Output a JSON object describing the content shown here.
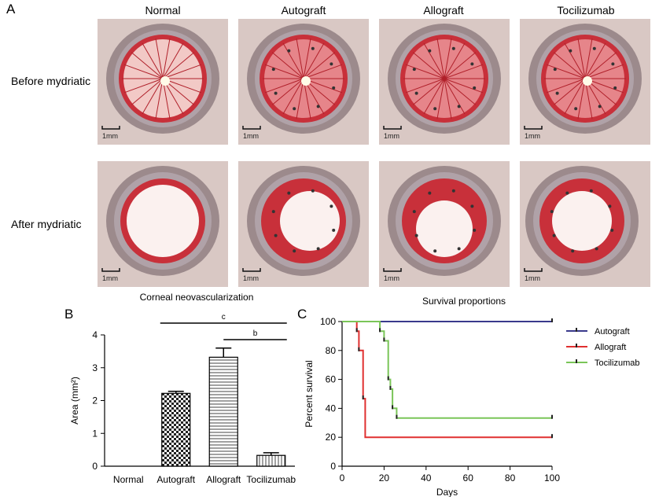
{
  "panel_a": {
    "letter": "A",
    "columns": [
      "Normal",
      "Autograft",
      "Allograft",
      "Tocilizumab"
    ],
    "rows": [
      "Before mydriatic",
      "After mydriatic"
    ],
    "scale_label": "1mm"
  },
  "chart_data": [
    {
      "letter": "B",
      "type": "bar",
      "title": "Corneal neovascularization",
      "ylabel": "Area (mm²)",
      "xlabel": "",
      "categories": [
        "Normal",
        "Autograft",
        "Allograft",
        "Tocilizumab"
      ],
      "values": [
        0,
        2.22,
        3.32,
        0.33
      ],
      "errors": [
        0,
        0.06,
        0.28,
        0.08
      ],
      "patterns": [
        "none",
        "checker",
        "horizontal-lines",
        "vertical-lines"
      ],
      "ylim": [
        0,
        4
      ],
      "yticks": [
        0,
        1,
        2,
        3,
        4
      ],
      "significance": [
        {
          "label": "c",
          "from": "Autograft",
          "to": "Tocilizumab"
        },
        {
          "label": "b",
          "from": "Allograft",
          "to": "Tocilizumab"
        }
      ],
      "grid": false
    },
    {
      "letter": "C",
      "type": "line",
      "subtype": "step",
      "title": "Survival proportions",
      "xlabel": "Days",
      "ylabel": "Percent survival",
      "xlim": [
        0,
        100
      ],
      "ylim": [
        0,
        100
      ],
      "xticks": [
        0,
        20,
        40,
        60,
        80,
        100
      ],
      "yticks": [
        0,
        20,
        40,
        60,
        80,
        100
      ],
      "legend_position": "right",
      "grid": false,
      "series": [
        {
          "name": "Autograft",
          "color": "#3a3a8c",
          "points": [
            [
              0,
              100
            ],
            [
              100,
              100
            ]
          ],
          "censored": [
            [
              100,
              100
            ]
          ]
        },
        {
          "name": "Allograft",
          "color": "#e03030",
          "points": [
            [
              0,
              100
            ],
            [
              7,
              100
            ],
            [
              7,
              93.3
            ],
            [
              8,
              93.3
            ],
            [
              8,
              80
            ],
            [
              10,
              80
            ],
            [
              10,
              46.7
            ],
            [
              11,
              46.7
            ],
            [
              11,
              20
            ],
            [
              100,
              20
            ]
          ],
          "censored": [
            [
              7,
              93.3
            ],
            [
              8,
              80
            ],
            [
              10,
              46.7
            ],
            [
              100,
              20
            ]
          ]
        },
        {
          "name": "Tocilizumab",
          "color": "#7ac558",
          "points": [
            [
              0,
              100
            ],
            [
              18,
              100
            ],
            [
              18,
              93.3
            ],
            [
              20,
              93.3
            ],
            [
              20,
              86.7
            ],
            [
              22,
              86.7
            ],
            [
              22,
              60
            ],
            [
              23,
              60
            ],
            [
              23,
              53.3
            ],
            [
              24,
              53.3
            ],
            [
              24,
              40
            ],
            [
              26,
              40
            ],
            [
              26,
              33.3
            ],
            [
              100,
              33.3
            ]
          ],
          "censored": [
            [
              18,
              93.3
            ],
            [
              20,
              86.7
            ],
            [
              22,
              60
            ],
            [
              23,
              53.3
            ],
            [
              24,
              40
            ],
            [
              26,
              33.3
            ],
            [
              100,
              33.3
            ]
          ]
        }
      ]
    }
  ]
}
